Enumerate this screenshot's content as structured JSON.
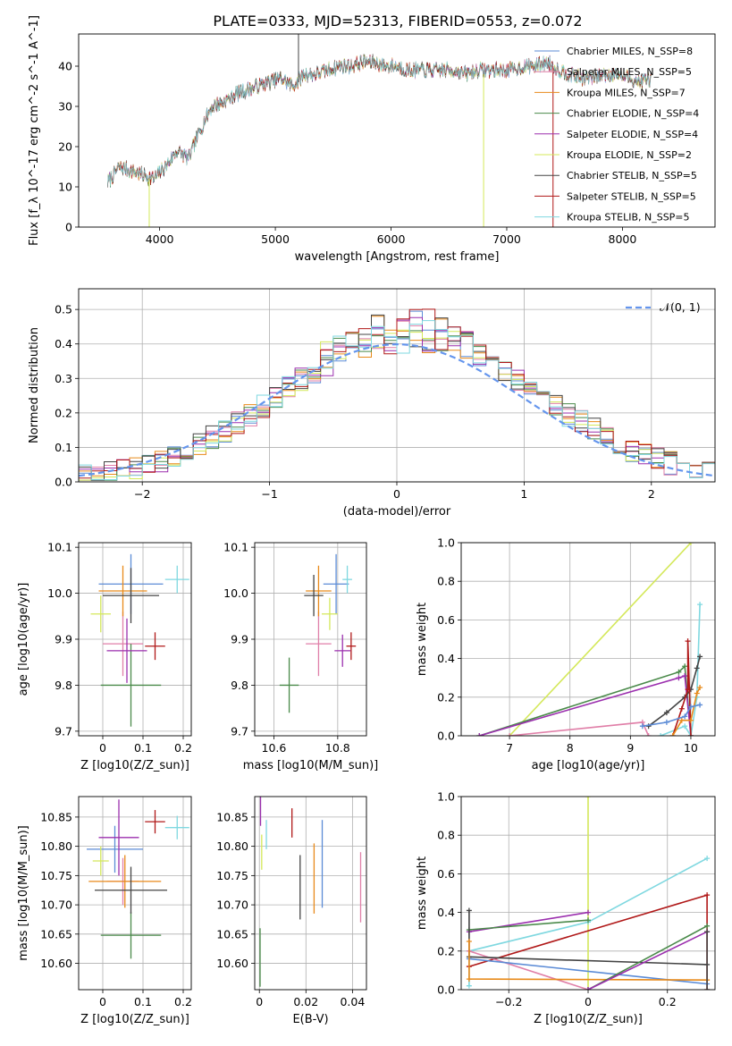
{
  "figure": {
    "title": "PLATE=0333, MJD=52313, FIBERID=0553, z=0.072"
  },
  "colors": {
    "Chabrier MILES": "#5b8bd6",
    "Salpeter MILES": "#e07fa8",
    "Kroupa MILES": "#e88a1a",
    "Chabrier ELODIE": "#4a8a4a",
    "Salpeter ELODIE": "#9b2fae",
    "Kroupa ELODIE": "#d4e85a",
    "Chabrier STELIB": "#444444",
    "Salpeter STELIB": "#b01818",
    "Kroupa STELIB": "#7fd8e0",
    "normal": "#6495ed"
  },
  "chart_data": [
    {
      "id": "spectrum",
      "type": "line",
      "xlabel": "wavelength [Angstrom, rest frame]",
      "ylabel": "Flux [f_λ 10^-17 erg cm^-2 s^-1 A^-1]",
      "xlim": [
        3300,
        8800
      ],
      "ylim": [
        0,
        48
      ],
      "xticks": [
        4000,
        5000,
        6000,
        7000,
        8000
      ],
      "yticks": [
        0,
        10,
        20,
        30,
        40
      ],
      "legend": "upper right",
      "series": [
        {
          "name": "Chabrier MILES, N_SSP=8",
          "color_key": "Chabrier MILES"
        },
        {
          "name": "Salpeter MILES, N_SSP=5",
          "color_key": "Salpeter MILES"
        },
        {
          "name": "Kroupa MILES, N_SSP=7",
          "color_key": "Kroupa MILES"
        },
        {
          "name": "Chabrier ELODIE, N_SSP=4",
          "color_key": "Chabrier ELODIE"
        },
        {
          "name": "Salpeter ELODIE, N_SSP=4",
          "color_key": "Salpeter ELODIE"
        },
        {
          "name": "Kroupa ELODIE, N_SSP=2",
          "color_key": "Kroupa ELODIE"
        },
        {
          "name": "Chabrier STELIB, N_SSP=5",
          "color_key": "Chabrier STELIB"
        },
        {
          "name": "Salpeter STELIB, N_SSP=5",
          "color_key": "Salpeter STELIB"
        },
        {
          "name": "Kroupa STELIB, N_SSP=5",
          "color_key": "Kroupa STELIB"
        }
      ],
      "continuum": [
        [
          3550,
          11
        ],
        [
          3650,
          15
        ],
        [
          3750,
          14
        ],
        [
          3850,
          13
        ],
        [
          3950,
          12
        ],
        [
          4050,
          15
        ],
        [
          4150,
          19
        ],
        [
          4250,
          17
        ],
        [
          4350,
          24
        ],
        [
          4450,
          30
        ],
        [
          4550,
          31
        ],
        [
          4650,
          33
        ],
        [
          4750,
          34
        ],
        [
          4850,
          35
        ],
        [
          4950,
          36
        ],
        [
          5050,
          37
        ],
        [
          5150,
          35
        ],
        [
          5250,
          38
        ],
        [
          5350,
          38
        ],
        [
          5450,
          39
        ],
        [
          5550,
          40
        ],
        [
          5650,
          40
        ],
        [
          5750,
          41
        ],
        [
          5850,
          41
        ],
        [
          5950,
          40
        ],
        [
          6050,
          40
        ],
        [
          6150,
          39
        ],
        [
          6250,
          39
        ],
        [
          6350,
          39
        ],
        [
          6450,
          39
        ],
        [
          6550,
          39
        ],
        [
          6650,
          38
        ],
        [
          6750,
          39
        ],
        [
          6850,
          39
        ],
        [
          6950,
          39
        ],
        [
          7050,
          39
        ],
        [
          7150,
          40
        ],
        [
          7250,
          40
        ],
        [
          7350,
          41
        ],
        [
          7450,
          39
        ],
        [
          7550,
          38
        ],
        [
          7650,
          37
        ],
        [
          7750,
          37
        ],
        [
          7850,
          38
        ],
        [
          7950,
          38
        ],
        [
          8050,
          37
        ],
        [
          8150,
          36
        ],
        [
          8250,
          37
        ]
      ],
      "spikes": [
        [
          3910,
          0,
          12
        ],
        [
          5200,
          48,
          36
        ],
        [
          6800,
          0,
          38
        ],
        [
          7400,
          0,
          40
        ]
      ]
    },
    {
      "id": "residuals",
      "type": "histogram",
      "xlabel": "(data-model)/error",
      "ylabel": "Normed distribution",
      "xlim": [
        -2.5,
        2.5
      ],
      "ylim": [
        0,
        0.56
      ],
      "xticks": [
        -2,
        -1,
        0,
        1,
        2
      ],
      "yticks": [
        0.0,
        0.1,
        0.2,
        0.3,
        0.4,
        0.5
      ],
      "grid": true,
      "bin_width": 0.1,
      "legend": "upper right",
      "normal_label": "𝒩(0, 1)",
      "normal_mean": 0,
      "normal_sigma": 1
    },
    {
      "id": "z-age",
      "type": "errorbar",
      "xlabel": "Z [log10(Z/Z_sun)]",
      "ylabel": "age  [log10(age/yr)]",
      "xlim": [
        -0.06,
        0.22
      ],
      "ylim": [
        9.69,
        10.11
      ],
      "xticks": [
        0.0,
        0.1,
        0.2
      ],
      "yticks": [
        9.7,
        9.8,
        9.9,
        10.0,
        10.1
      ],
      "grid": true,
      "points": [
        {
          "c": "Chabrier MILES",
          "x": 0.07,
          "y": 10.02,
          "xe": 0.08,
          "ye": 0.065
        },
        {
          "c": "Salpeter MILES",
          "x": 0.05,
          "y": 9.89,
          "xe": 0.05,
          "ye": 0.07
        },
        {
          "c": "Kroupa MILES",
          "x": 0.05,
          "y": 10.005,
          "xe": 0.06,
          "ye": 0.055
        },
        {
          "c": "Chabrier ELODIE",
          "x": 0.07,
          "y": 9.8,
          "xe": 0.075,
          "ye": 0.09
        },
        {
          "c": "Salpeter ELODIE",
          "x": 0.06,
          "y": 9.875,
          "xe": 0.05,
          "ye": 0.07
        },
        {
          "c": "Kroupa ELODIE",
          "x": -0.005,
          "y": 9.955,
          "xe": 0.025,
          "ye": 0.04
        },
        {
          "c": "Chabrier STELIB",
          "x": 0.07,
          "y": 9.995,
          "xe": 0.07,
          "ye": 0.06
        },
        {
          "c": "Salpeter STELIB",
          "x": 0.13,
          "y": 9.885,
          "xe": 0.025,
          "ye": 0.03
        },
        {
          "c": "Kroupa STELIB",
          "x": 0.185,
          "y": 10.03,
          "xe": 0.03,
          "ye": 0.03
        }
      ]
    },
    {
      "id": "mass-age",
      "type": "errorbar",
      "xlabel": "mass [log10(M/M_sun)]",
      "ylabel": "",
      "xlim": [
        10.54,
        10.89
      ],
      "ylim": [
        9.69,
        10.11
      ],
      "xticks": [
        10.6,
        10.8
      ],
      "yticks": [
        9.7,
        9.8,
        9.9,
        10.0,
        10.1
      ],
      "grid": true,
      "points": [
        {
          "c": "Chabrier MILES",
          "x": 10.795,
          "y": 10.02,
          "xe": 0.04,
          "ye": 0.065
        },
        {
          "c": "Salpeter MILES",
          "x": 10.74,
          "y": 9.89,
          "xe": 0.04,
          "ye": 0.07
        },
        {
          "c": "Kroupa MILES",
          "x": 10.74,
          "y": 10.005,
          "xe": 0.04,
          "ye": 0.055
        },
        {
          "c": "Chabrier ELODIE",
          "x": 10.648,
          "y": 9.8,
          "xe": 0.03,
          "ye": 0.06
        },
        {
          "c": "Salpeter ELODIE",
          "x": 10.815,
          "y": 9.875,
          "xe": 0.025,
          "ye": 0.035
        },
        {
          "c": "Kroupa ELODIE",
          "x": 10.775,
          "y": 9.955,
          "xe": 0.025,
          "ye": 0.035
        },
        {
          "c": "Chabrier STELIB",
          "x": 10.725,
          "y": 9.995,
          "xe": 0.03,
          "ye": 0.045
        },
        {
          "c": "Salpeter STELIB",
          "x": 10.842,
          "y": 9.885,
          "xe": 0.015,
          "ye": 0.03
        },
        {
          "c": "Kroupa STELIB",
          "x": 10.83,
          "y": 10.03,
          "xe": 0.015,
          "ye": 0.03
        }
      ]
    },
    {
      "id": "age-weight",
      "type": "line",
      "xlabel": "age  [log10(age/yr)]",
      "ylabel": "mass weight",
      "xlim": [
        6.2,
        10.4
      ],
      "ylim": [
        0,
        1.0
      ],
      "xticks": [
        7,
        8,
        9,
        10
      ],
      "yticks": [
        0.0,
        0.2,
        0.4,
        0.6,
        0.8,
        1.0
      ],
      "grid": true,
      "series": [
        {
          "c": "Kroupa ELODIE",
          "pts": [
            [
              7.0,
              0.0
            ],
            [
              10.0,
              1.0
            ]
          ]
        },
        {
          "c": "Chabrier ELODIE",
          "pts": [
            [
              6.5,
              0.0
            ],
            [
              9.8,
              0.33
            ],
            [
              9.9,
              0.36
            ],
            [
              10.0,
              0.0
            ]
          ]
        },
        {
          "c": "Salpeter ELODIE",
          "pts": [
            [
              6.5,
              0.0
            ],
            [
              9.8,
              0.3
            ],
            [
              9.9,
              0.31
            ],
            [
              10.0,
              0.0
            ]
          ]
        },
        {
          "c": "Salpeter MILES",
          "pts": [
            [
              7.0,
              0.0
            ],
            [
              9.2,
              0.07
            ],
            [
              9.3,
              0.0
            ]
          ]
        },
        {
          "c": "Kroupa STELIB",
          "pts": [
            [
              9.5,
              0.0
            ],
            [
              9.9,
              0.05
            ],
            [
              10.0,
              0.0
            ],
            [
              10.1,
              0.2
            ],
            [
              10.15,
              0.68
            ]
          ]
        },
        {
          "c": "Chabrier STELIB",
          "pts": [
            [
              9.3,
              0.05
            ],
            [
              9.6,
              0.12
            ],
            [
              9.9,
              0.2
            ],
            [
              10.0,
              0.24
            ],
            [
              10.1,
              0.35
            ],
            [
              10.15,
              0.41
            ]
          ]
        },
        {
          "c": "Salpeter STELIB",
          "pts": [
            [
              9.7,
              0.0
            ],
            [
              9.85,
              0.14
            ],
            [
              9.95,
              0.24
            ],
            [
              9.95,
              0.49
            ],
            [
              10.0,
              0.0
            ]
          ]
        },
        {
          "c": "Kroupa MILES",
          "pts": [
            [
              9.7,
              0.0
            ],
            [
              9.85,
              0.08
            ],
            [
              10.0,
              0.08
            ],
            [
              10.1,
              0.22
            ],
            [
              10.15,
              0.25
            ]
          ]
        },
        {
          "c": "Chabrier MILES",
          "pts": [
            [
              9.2,
              0.05
            ],
            [
              9.6,
              0.07
            ],
            [
              9.9,
              0.1
            ],
            [
              10.0,
              0.15
            ],
            [
              10.15,
              0.16
            ]
          ]
        }
      ]
    },
    {
      "id": "z-mass",
      "type": "errorbar",
      "xlabel": "Z [log10(Z/Z_sun)]",
      "ylabel": "mass [log10(M/M_sun)]",
      "xlim": [
        -0.06,
        0.22
      ],
      "ylim": [
        10.555,
        10.885
      ],
      "xticks": [
        0.0,
        0.1,
        0.2
      ],
      "yticks": [
        10.6,
        10.65,
        10.7,
        10.75,
        10.8,
        10.85
      ],
      "grid": true,
      "points": [
        {
          "c": "Chabrier MILES",
          "x": 0.03,
          "y": 10.795,
          "xe": 0.07,
          "ye": 0.04
        },
        {
          "c": "Salpeter MILES",
          "x": 0.05,
          "y": 10.74,
          "xe": 0.04,
          "ye": 0.04
        },
        {
          "c": "Kroupa MILES",
          "x": 0.055,
          "y": 10.74,
          "xe": 0.09,
          "ye": 0.045
        },
        {
          "c": "Chabrier ELODIE",
          "x": 0.07,
          "y": 10.648,
          "xe": 0.075,
          "ye": 0.04
        },
        {
          "c": "Salpeter ELODIE",
          "x": 0.04,
          "y": 10.815,
          "xe": 0.05,
          "ye": 0.065
        },
        {
          "c": "Kroupa ELODIE",
          "x": -0.005,
          "y": 10.775,
          "xe": 0.02,
          "ye": 0.025
        },
        {
          "c": "Chabrier STELIB",
          "x": 0.07,
          "y": 10.725,
          "xe": 0.09,
          "ye": 0.04
        },
        {
          "c": "Salpeter STELIB",
          "x": 0.13,
          "y": 10.842,
          "xe": 0.025,
          "ye": 0.02
        },
        {
          "c": "Kroupa STELIB",
          "x": 0.185,
          "y": 10.832,
          "xe": 0.03,
          "ye": 0.02
        }
      ]
    },
    {
      "id": "ebv-mass",
      "type": "errorbar",
      "xlabel": "E(B-V)",
      "ylabel": "",
      "xlim": [
        -0.002,
        0.046
      ],
      "ylim": [
        10.555,
        10.885
      ],
      "xticks": [
        0.0,
        0.02,
        0.04
      ],
      "yticks": [
        10.6,
        10.65,
        10.7,
        10.75,
        10.8,
        10.85
      ],
      "grid": true,
      "points": [
        {
          "c": "Chabrier MILES",
          "x": 0.027,
          "y": 10.77,
          "xe": 0,
          "ye": 0.075
        },
        {
          "c": "Salpeter MILES",
          "x": 0.0435,
          "y": 10.73,
          "xe": 0,
          "ye": 0.06
        },
        {
          "c": "Kroupa MILES",
          "x": 0.0235,
          "y": 10.745,
          "xe": 0,
          "ye": 0.06
        },
        {
          "c": "Chabrier ELODIE",
          "x": 0.0003,
          "y": 10.61,
          "xe": 0,
          "ye": 0.05
        },
        {
          "c": "Salpeter ELODIE",
          "x": 0.0005,
          "y": 10.86,
          "xe": 0,
          "ye": 0.025
        },
        {
          "c": "Kroupa ELODIE",
          "x": 0.001,
          "y": 10.79,
          "xe": 0,
          "ye": 0.03
        },
        {
          "c": "Chabrier STELIB",
          "x": 0.0175,
          "y": 10.73,
          "xe": 0,
          "ye": 0.055
        },
        {
          "c": "Salpeter STELIB",
          "x": 0.014,
          "y": 10.84,
          "xe": 0,
          "ye": 0.025
        },
        {
          "c": "Kroupa STELIB",
          "x": 0.003,
          "y": 10.82,
          "xe": 0,
          "ye": 0.025
        }
      ]
    },
    {
      "id": "z-weight",
      "type": "line",
      "xlabel": "Z [log10(Z/Z_sun)]",
      "ylabel": "mass weight",
      "xlim": [
        -0.32,
        0.32
      ],
      "ylim": [
        0,
        1.0
      ],
      "xticks": [
        -0.2,
        0.0,
        0.2
      ],
      "yticks": [
        0.0,
        0.2,
        0.4,
        0.6,
        0.8,
        1.0
      ],
      "grid": true,
      "series": [
        {
          "c": "Kroupa ELODIE",
          "pts": [
            [
              0.0,
              0.0
            ],
            [
              0.0,
              1.0
            ]
          ]
        },
        {
          "c": "Kroupa STELIB",
          "pts": [
            [
              -0.3,
              0.02
            ],
            [
              -0.3,
              0.2
            ],
            [
              0.0,
              0.35
            ],
            [
              0.3,
              0.68
            ]
          ]
        },
        {
          "c": "Salpeter STELIB",
          "pts": [
            [
              -0.3,
              0.12
            ],
            [
              0.3,
              0.49
            ],
            [
              0.3,
              0.0
            ]
          ]
        },
        {
          "c": "Salpeter ELODIE",
          "pts": [
            [
              -0.3,
              0.3
            ],
            [
              0.0,
              0.4
            ]
          ]
        },
        {
          "c": "Chabrier ELODIE",
          "pts": [
            [
              -0.3,
              0.31
            ],
            [
              0.0,
              0.36
            ]
          ]
        },
        {
          "c": "Salpeter MILES",
          "pts": [
            [
              -0.3,
              0.2
            ],
            [
              0.0,
              0.0
            ]
          ]
        },
        {
          "c": "Chabrier STELIB",
          "pts": [
            [
              -0.3,
              0.41
            ],
            [
              -0.3,
              0.17
            ],
            [
              0.3,
              0.13
            ]
          ]
        },
        {
          "c": "Chabrier MILES",
          "pts": [
            [
              -0.3,
              0.16
            ],
            [
              0.3,
              0.03
            ]
          ]
        },
        {
          "c": "Kroupa MILES",
          "pts": [
            [
              -0.3,
              0.25
            ],
            [
              -0.3,
              0.055
            ],
            [
              0.3,
              0.05
            ]
          ]
        },
        {
          "c": "Chabrier ELODIE",
          "pts": [
            [
              0.0,
              0.0
            ],
            [
              0.3,
              0.33
            ]
          ]
        },
        {
          "c": "Salpeter ELODIE",
          "pts": [
            [
              0.0,
              0.0
            ],
            [
              0.3,
              0.3
            ]
          ]
        },
        {
          "c": "Chabrier STELIB",
          "pts": [
            [
              0.3,
              0.3
            ],
            [
              0.3,
              0.0
            ]
          ]
        }
      ]
    }
  ]
}
